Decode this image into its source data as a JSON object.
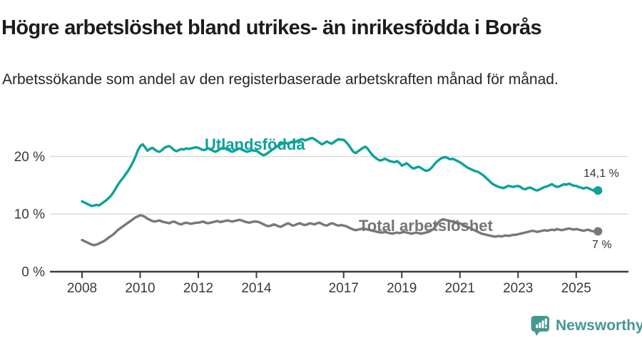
{
  "header": {
    "title": "Högre arbetslöshet bland utrikes- än inrikesfödda i Borås",
    "subtitle": "Arbetssökande som andel av den registerbaserade arbetskraften månad för månad."
  },
  "chart_data": {
    "type": "line",
    "title": "Högre arbetslöshet bland utrikes- än inrikesfödda i Borås",
    "subtitle": "Arbetssökande som andel av den registerbaserade arbetskraften månad för månad.",
    "x_unit": "year-month",
    "x_start": 2008.0,
    "x_step": 0.0833333,
    "xlim": [
      2008.0,
      2025.75
    ],
    "ylim": [
      0,
      24.5
    ],
    "grid": "horizontal",
    "legend_position": "inline-labels",
    "x_ticks": [
      {
        "value": 2008,
        "label": "2008"
      },
      {
        "value": 2010,
        "label": "2010"
      },
      {
        "value": 2012,
        "label": "2012"
      },
      {
        "value": 2014,
        "label": "2014"
      },
      {
        "value": 2017,
        "label": "2017"
      },
      {
        "value": 2019,
        "label": "2019"
      },
      {
        "value": 2021,
        "label": "2021"
      },
      {
        "value": 2023,
        "label": "2023"
      },
      {
        "value": 2025,
        "label": "2025"
      }
    ],
    "y_ticks": [
      {
        "value": 20,
        "label": "20 %"
      },
      {
        "value": 10,
        "label": "10 %"
      },
      {
        "value": 0,
        "label": "0 %"
      }
    ],
    "series": [
      {
        "name": "Utlandsfödda",
        "color": "#0ba29a",
        "end_label": "14,1 %",
        "end_value": 14.1,
        "values": [
          12.2,
          12.0,
          11.8,
          11.6,
          11.4,
          11.5,
          11.6,
          11.5,
          11.8,
          12.1,
          12.4,
          12.8,
          13.2,
          13.8,
          14.5,
          15.2,
          15.8,
          16.3,
          16.9,
          17.5,
          18.2,
          19.0,
          19.9,
          21.0,
          21.8,
          22.1,
          21.6,
          21.0,
          21.3,
          21.5,
          21.2,
          20.9,
          20.8,
          21.1,
          21.5,
          21.7,
          21.8,
          21.5,
          21.1,
          20.9,
          21.1,
          21.3,
          21.2,
          21.4,
          21.3,
          21.4,
          21.5,
          21.6,
          21.5,
          21.3,
          21.1,
          21.2,
          21.4,
          21.2,
          21.0,
          20.8,
          21.0,
          21.3,
          21.5,
          21.4,
          21.2,
          21.0,
          20.8,
          21.0,
          21.2,
          21.4,
          21.2,
          21.0,
          20.8,
          20.9,
          21.1,
          21.0,
          21.0,
          20.7,
          20.4,
          20.2,
          20.4,
          20.7,
          21.0,
          21.3,
          21.6,
          21.9,
          22.1,
          22.3,
          22.4,
          22.2,
          22.4,
          22.6,
          22.5,
          22.7,
          22.9,
          23.0,
          22.8,
          22.9,
          23.1,
          23.2,
          23.0,
          22.7,
          22.4,
          22.1,
          22.3,
          22.6,
          22.4,
          22.2,
          22.5,
          22.8,
          23.0,
          22.9,
          22.9,
          22.5,
          22.0,
          21.4,
          20.8,
          20.6,
          20.9,
          21.2,
          21.5,
          21.7,
          21.3,
          20.7,
          20.2,
          19.8,
          19.5,
          19.3,
          19.4,
          19.6,
          19.4,
          19.2,
          19.1,
          19.0,
          19.2,
          18.9,
          18.4,
          18.6,
          18.8,
          18.5,
          18.1,
          17.9,
          18.1,
          18.2,
          18.0,
          17.7,
          17.5,
          17.6,
          17.9,
          18.4,
          18.9,
          19.3,
          19.6,
          19.8,
          19.9,
          19.7,
          19.5,
          19.6,
          19.4,
          19.2,
          19.0,
          18.7,
          18.4,
          18.1,
          17.9,
          17.7,
          17.5,
          17.4,
          17.2,
          16.9,
          16.6,
          16.2,
          15.8,
          15.4,
          15.1,
          14.9,
          14.7,
          14.6,
          14.5,
          14.7,
          14.9,
          14.8,
          14.7,
          14.8,
          14.9,
          14.7,
          14.4,
          14.3,
          14.5,
          14.6,
          14.4,
          14.2,
          14.1,
          14.3,
          14.5,
          14.7,
          14.8,
          15.0,
          15.2,
          14.9,
          14.7,
          14.8,
          15.0,
          15.2,
          15.1,
          15.3,
          15.1,
          14.9,
          14.9,
          14.7,
          14.6,
          14.4,
          14.6,
          14.5,
          14.3,
          14.1,
          14.4,
          14.1
        ]
      },
      {
        "name": "Total arbetslöshet",
        "color": "#787878",
        "end_label": "7 %",
        "end_value": 7.0,
        "values": [
          5.5,
          5.3,
          5.1,
          4.9,
          4.7,
          4.6,
          4.7,
          4.9,
          5.1,
          5.3,
          5.6,
          5.9,
          6.2,
          6.5,
          6.9,
          7.3,
          7.6,
          7.9,
          8.2,
          8.5,
          8.8,
          9.1,
          9.4,
          9.6,
          9.8,
          9.7,
          9.5,
          9.2,
          9.0,
          8.8,
          8.7,
          8.8,
          8.9,
          8.7,
          8.6,
          8.5,
          8.4,
          8.6,
          8.7,
          8.5,
          8.3,
          8.2,
          8.4,
          8.5,
          8.4,
          8.3,
          8.4,
          8.5,
          8.5,
          8.6,
          8.7,
          8.5,
          8.4,
          8.5,
          8.6,
          8.7,
          8.8,
          8.6,
          8.7,
          8.8,
          8.9,
          8.8,
          8.7,
          8.8,
          8.9,
          9.0,
          8.9,
          8.7,
          8.6,
          8.5,
          8.6,
          8.7,
          8.7,
          8.6,
          8.4,
          8.2,
          8.0,
          7.9,
          8.0,
          8.2,
          8.1,
          7.9,
          7.8,
          8.0,
          8.2,
          8.4,
          8.2,
          8.0,
          8.1,
          8.3,
          8.4,
          8.2,
          8.1,
          8.2,
          8.4,
          8.3,
          8.2,
          8.4,
          8.5,
          8.3,
          8.1,
          8.0,
          8.2,
          8.4,
          8.3,
          8.1,
          8.0,
          8.1,
          8.0,
          7.9,
          7.7,
          7.5,
          7.3,
          7.2,
          7.3,
          7.4,
          7.5,
          7.4,
          7.3,
          7.2,
          7.1,
          7.0,
          6.9,
          6.8,
          6.8,
          6.9,
          6.8,
          6.7,
          6.6,
          6.7,
          6.8,
          6.7,
          6.8,
          6.9,
          6.8,
          6.7,
          6.6,
          6.7,
          6.8,
          6.7,
          6.6,
          6.7,
          6.8,
          6.9,
          7.1,
          7.4,
          7.9,
          8.5,
          8.9,
          9.1,
          9.0,
          8.9,
          8.8,
          8.7,
          8.6,
          8.5,
          8.4,
          8.2,
          8.0,
          7.8,
          7.6,
          7.4,
          7.2,
          7.0,
          6.8,
          6.6,
          6.5,
          6.4,
          6.3,
          6.2,
          6.1,
          6.1,
          6.2,
          6.1,
          6.2,
          6.3,
          6.2,
          6.3,
          6.4,
          6.4,
          6.5,
          6.6,
          6.7,
          6.8,
          6.9,
          7.0,
          7.1,
          7.0,
          6.9,
          7.0,
          7.1,
          7.2,
          7.1,
          7.2,
          7.3,
          7.2,
          7.4,
          7.3,
          7.2,
          7.3,
          7.4,
          7.5,
          7.4,
          7.3,
          7.4,
          7.3,
          7.2,
          7.1,
          7.2,
          7.3,
          7.1,
          7.0,
          6.9,
          7.0
        ]
      }
    ],
    "colors": {
      "grid": "#d9d9d9",
      "axis": "#3c3c3c",
      "tick_text": "#3a3a3a"
    }
  },
  "footer": {
    "brand": "Newsworthy",
    "brand_color": "#459892"
  }
}
